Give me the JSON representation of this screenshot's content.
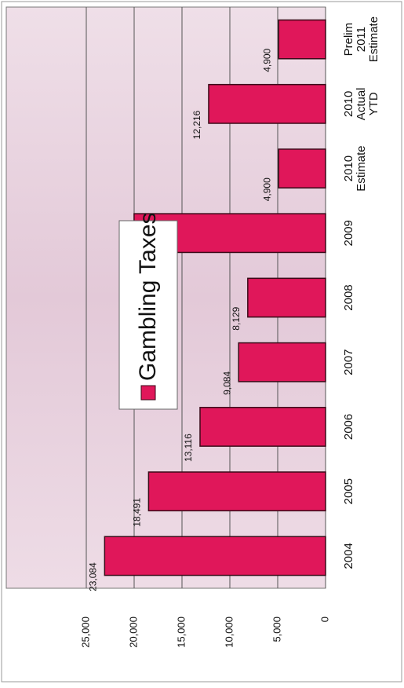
{
  "chart_data": {
    "type": "bar",
    "series": [
      {
        "name": "Gambling Taxes",
        "color": "#e0175a",
        "values": [
          23084,
          18491,
          13116,
          9084,
          8129,
          20007,
          4900,
          12216,
          4900
        ],
        "value_labels": [
          "23,084",
          "18,491",
          "13,116",
          "9,084",
          "8,129",
          "20,007",
          "4,900",
          "12,216",
          "4,900"
        ]
      }
    ],
    "categories": [
      [
        "2004"
      ],
      [
        "2005"
      ],
      [
        "2006"
      ],
      [
        "2007"
      ],
      [
        "2008"
      ],
      [
        "2009"
      ],
      [
        "2010",
        "Estimate"
      ],
      [
        "2010",
        "Actual",
        "YTD"
      ],
      [
        "Prelim",
        "2011",
        "Estimate"
      ]
    ],
    "ylim": [
      0,
      25000
    ],
    "yticks": [
      0,
      {
        "value": 5000,
        "label": "5,000"
      },
      {
        "value": 10000,
        "label": "10,000"
      },
      {
        "value": 15000,
        "label": "15,000"
      },
      {
        "value": 20000,
        "label": "20,000"
      },
      {
        "value": 25000,
        "label": "25,000"
      }
    ],
    "grid": true
  }
}
